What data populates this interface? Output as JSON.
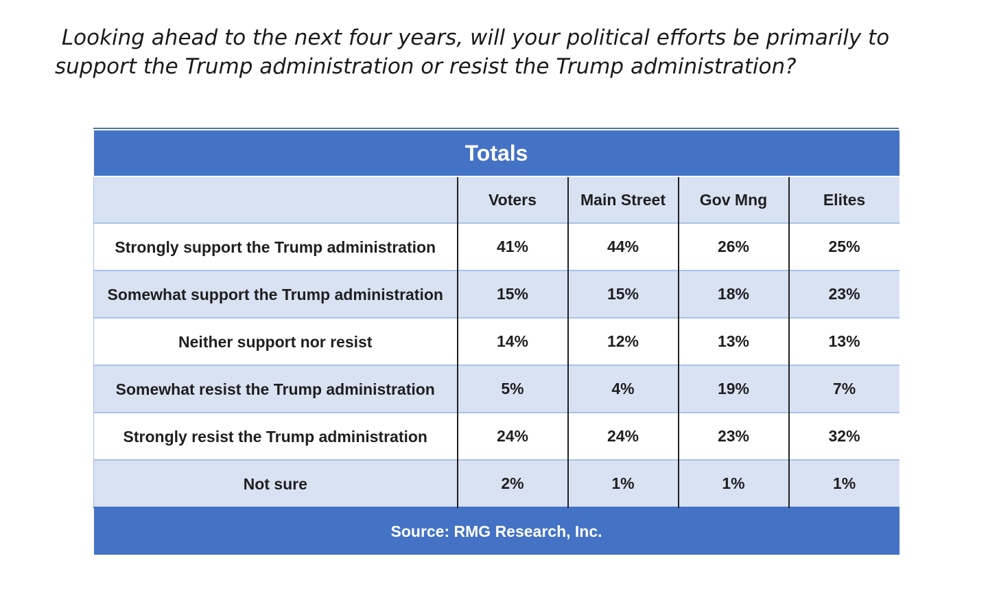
{
  "question": " Looking ahead to the next four years, will your political efforts be primarily to\nsupport the Trump administration or resist the Trump administration?",
  "chart_data": {
    "type": "table",
    "title": "Totals",
    "columns": [
      "",
      "Voters",
      "Main Street",
      "Gov Mng",
      "Elites"
    ],
    "rows": [
      {
        "label": "Strongly support the Trump administration",
        "values": [
          "41%",
          "44%",
          "26%",
          "25%"
        ]
      },
      {
        "label": "Somewhat support the Trump administration",
        "values": [
          "15%",
          "15%",
          "18%",
          "23%"
        ]
      },
      {
        "label": "Neither support nor resist",
        "values": [
          "14%",
          "12%",
          "13%",
          "13%"
        ]
      },
      {
        "label": "Somewhat resist the Trump administration",
        "values": [
          "5%",
          "4%",
          "19%",
          "7%"
        ]
      },
      {
        "label": "Strongly resist the Trump administration",
        "values": [
          "24%",
          "24%",
          "23%",
          "32%"
        ]
      },
      {
        "label": "Not sure",
        "values": [
          "2%",
          "1%",
          "1%",
          "1%"
        ]
      }
    ],
    "source": "Source: RMG Research, Inc."
  },
  "colors": {
    "header_blue": "#4472c4",
    "row_tint": "#d9e2f3",
    "text": "#1f1f1f"
  }
}
